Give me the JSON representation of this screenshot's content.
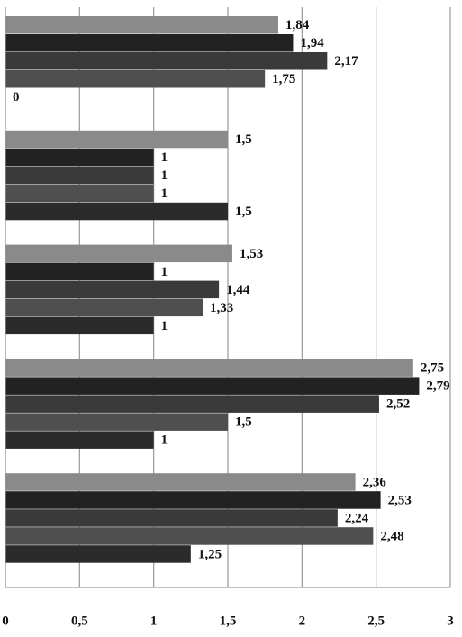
{
  "chart_data": {
    "type": "hbar",
    "categories": [
      null,
      null,
      null,
      null,
      null
    ],
    "series": [
      {
        "color": "#8a8a8a",
        "values": [
          1.84,
          1.5,
          1.53,
          2.75,
          2.36
        ],
        "value_labels": [
          "1,84",
          "1,5",
          "1,53",
          "2,75",
          "2,36"
        ]
      },
      {
        "color": "#222222",
        "values": [
          1.94,
          1,
          1,
          2.79,
          2.53
        ],
        "value_labels": [
          "1,94",
          "1",
          "1",
          "2,79",
          "2,53"
        ]
      },
      {
        "color": "#3a3a3a",
        "values": [
          2.17,
          1,
          1.44,
          2.52,
          2.24
        ],
        "value_labels": [
          "2,17",
          "1",
          "1,44",
          "2,52",
          "2,24"
        ]
      },
      {
        "color": "#4f4f4f",
        "values": [
          1.75,
          1,
          1.33,
          1.5,
          2.48
        ],
        "value_labels": [
          "1,75",
          "1",
          "1,33",
          "1,5",
          "2,48"
        ]
      },
      {
        "color": "#2b2b2b",
        "values": [
          0,
          1.5,
          1,
          1,
          1.25
        ],
        "value_labels": [
          "0",
          "1,5",
          "1",
          "1",
          "1,25"
        ]
      }
    ],
    "xlim": [
      0,
      3
    ],
    "xticks": [
      0,
      {
        "value": 0.5,
        "label": "0,5"
      },
      1,
      {
        "value": 1.5,
        "label": "1,5"
      },
      2,
      {
        "value": 2.5,
        "label": "2,5"
      },
      3
    ],
    "grid": true
  }
}
